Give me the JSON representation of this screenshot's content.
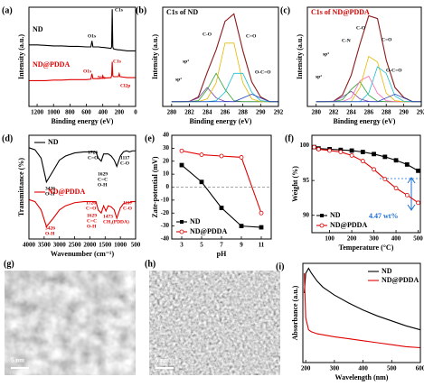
{
  "chart_data": [
    {
      "type": "line",
      "label": "(a)",
      "xlabel": "Binding energy (eV)",
      "ylabel": "Intensity (a.u.)",
      "xlim": [
        1300,
        0
      ],
      "xticks": [
        1200,
        1000,
        800,
        600,
        400,
        200,
        0
      ],
      "ylim": [
        0,
        100
      ],
      "legend": "inline",
      "x": [
        1300,
        1200,
        1100,
        1000,
        900,
        800,
        700,
        600,
        545,
        532,
        520,
        450,
        410,
        400,
        390,
        300,
        292,
        285,
        278,
        270,
        210,
        200,
        190,
        100,
        0
      ],
      "series": [
        {
          "name": "ND",
          "color": "#000000",
          "values": [
            62,
            62,
            61.5,
            61,
            61,
            60.5,
            60.5,
            60,
            60,
            66,
            60,
            60,
            59.5,
            59.5,
            59.5,
            58.5,
            60,
            98,
            60,
            58,
            57,
            57,
            57,
            56,
            56
          ]
        },
        {
          "name": "ND@PDDA",
          "color": "#e00000",
          "values": [
            26,
            26,
            26,
            26.5,
            26.5,
            27,
            27,
            27,
            27.5,
            33,
            28,
            28,
            28.5,
            31,
            28.5,
            29,
            31,
            45,
            31,
            30,
            30,
            33,
            30,
            29,
            29
          ]
        }
      ],
      "annotations": [
        "C1s",
        "O1s",
        "C1s",
        "O1s",
        "N1s",
        "Cl2p"
      ]
    },
    {
      "type": "line",
      "label": "(b)",
      "xlabel": "Binding energy (eV)",
      "ylabel": "Intensity (a.u.)",
      "xlim": [
        279,
        292
      ],
      "xticks": [
        280,
        282,
        284,
        286,
        288,
        290,
        292
      ],
      "ylim": [
        0,
        105
      ],
      "x": [
        280,
        281,
        282,
        283,
        284,
        285,
        286,
        287,
        288,
        289,
        290,
        291,
        292
      ],
      "series": [
        {
          "color": "#8b1a1a",
          "values": [
            5,
            5,
            5.3,
            10,
            36,
            60,
            90,
            98,
            59,
            26,
            10,
            5,
            5
          ]
        },
        {
          "color": "#7b3fa0",
          "values": [
            5,
            5,
            5.3,
            9,
            20,
            9,
            5.3,
            5,
            5,
            5,
            5,
            5,
            5
          ]
        },
        {
          "color": "#2ca02c",
          "values": [
            5,
            5,
            5,
            6,
            18,
            35,
            18,
            6,
            5,
            5,
            5,
            5,
            5
          ]
        },
        {
          "color": "#e6b800",
          "values": [
            5,
            5,
            5,
            5,
            8,
            25,
            67,
            67,
            25,
            8,
            5,
            5,
            5
          ]
        },
        {
          "color": "#17becf",
          "values": [
            5,
            5,
            5,
            5,
            5,
            6,
            15,
            35,
            35,
            15,
            6,
            5,
            5
          ]
        },
        {
          "color": "#1f3fbf",
          "values": [
            5,
            5,
            5,
            5,
            5,
            5,
            5,
            5,
            9,
            13,
            9,
            5,
            5
          ]
        }
      ],
      "annotations": [
        "C1s of ND",
        "C-O",
        "C=O",
        "sp³",
        "sp²",
        "O-C=O"
      ]
    },
    {
      "type": "line",
      "label": "(c)",
      "xlabel": "Binding energy (eV)",
      "ylabel": "Intensity (a.u.)",
      "xlim": [
        279,
        292
      ],
      "xticks": [
        280,
        282,
        284,
        286,
        288,
        290,
        292
      ],
      "ylim": [
        0,
        105
      ],
      "x": [
        280,
        281,
        282,
        283,
        284,
        285,
        286,
        287,
        288,
        289,
        290,
        291,
        292
      ],
      "series": [
        {
          "color": "#8b1a1a",
          "values": [
            5,
            5,
            5.5,
            12,
            33,
            66,
            96,
            93,
            49,
            20,
            9.5,
            5,
            5
          ]
        },
        {
          "color": "#7b3fa0",
          "values": [
            5,
            5,
            5.5,
            10,
            16,
            8,
            5.2,
            5,
            5,
            5,
            5,
            5,
            5
          ]
        },
        {
          "color": "#2ca02c",
          "values": [
            5,
            5,
            5,
            7,
            18,
            26,
            12,
            5.5,
            5,
            5,
            5,
            5,
            5
          ]
        },
        {
          "color": "#ff69b4",
          "values": [
            5,
            5,
            5,
            5,
            9,
            27,
            32,
            14,
            6,
            5,
            5,
            5,
            5
          ]
        },
        {
          "color": "#e6b800",
          "values": [
            5,
            5,
            5,
            5,
            5,
            20,
            53,
            47,
            14,
            6,
            5,
            5,
            5
          ]
        },
        {
          "color": "#17becf",
          "values": [
            5,
            5,
            5,
            5,
            5,
            5,
            14,
            42,
            35,
            11,
            5.5,
            5,
            5
          ]
        },
        {
          "color": "#1f3fbf",
          "values": [
            5,
            5,
            5,
            5,
            5,
            5,
            5,
            5,
            9,
            13,
            9,
            5,
            5
          ]
        }
      ],
      "annotations": [
        "C1s of ND@PDDA",
        "C-O",
        "C-N",
        "C=O",
        "sp³",
        "sp²",
        "O-C=O"
      ]
    },
    {
      "type": "line",
      "label": "(d)",
      "xlabel": "Wavenumber (cm⁻¹)",
      "ylabel": "Transmittance (%)",
      "xlim": [
        4000,
        500
      ],
      "xticks": [
        4000,
        3500,
        3000,
        2500,
        2000,
        1500,
        1000,
        500
      ],
      "ylim": [
        0,
        100
      ],
      "legend": "inline",
      "legend_line": true,
      "x": [
        4000,
        3800,
        3600,
        3426,
        3200,
        3000,
        2800,
        2500,
        2200,
        2000,
        1800,
        1726,
        1629,
        1550,
        1473,
        1400,
        1300,
        1200,
        1117,
        1000,
        900,
        800,
        700,
        600,
        500
      ],
      "series": [
        {
          "name": "ND",
          "color": "#000000",
          "values": [
            88,
            86,
            78,
            55,
            66,
            76,
            80,
            83,
            84,
            84,
            84,
            78,
            75,
            82,
            82,
            82,
            80,
            76,
            70,
            80,
            84,
            85,
            84,
            85,
            85
          ]
        },
        {
          "name": "ND@PDDA",
          "color": "#e00000",
          "values": [
            38,
            36,
            28,
            12,
            20,
            28,
            32,
            35,
            36,
            36,
            36,
            28,
            25,
            32,
            27,
            32,
            31,
            28,
            20,
            30,
            34,
            35,
            35,
            36,
            36
          ]
        }
      ],
      "annotations": [
        "3426",
        "O-H",
        "1726",
        "C=O",
        "1629",
        "C=C",
        "O-H",
        "1117",
        "C-O",
        "3426",
        "O-H",
        "1726",
        "C=O",
        "1629",
        "C=C",
        "O-H",
        "1473",
        "CH₃(PDDA)",
        "1117",
        "C-O"
      ]
    },
    {
      "type": "line",
      "label": "(e)",
      "xlabel": "pH",
      "ylabel": "Zate-potential (mV)",
      "xlim": [
        2,
        12
      ],
      "xticks": [
        3,
        5,
        7,
        9,
        11
      ],
      "ylim": [
        -40,
        40
      ],
      "yticks": [
        -40,
        -30,
        -20,
        -10,
        0,
        10,
        20,
        30,
        40
      ],
      "zero_line": true,
      "legend": "lower-left",
      "x": [
        3,
        5,
        7,
        9,
        11
      ],
      "series": [
        {
          "name": "ND",
          "color": "#000000",
          "marker": "square",
          "values": [
            17,
            4,
            -16,
            -30,
            -31
          ]
        },
        {
          "name": "ND@PDDA",
          "color": "#e00000",
          "marker": "circle",
          "values": [
            28,
            25,
            24,
            23,
            -20
          ]
        }
      ]
    },
    {
      "type": "line",
      "label": "(f)",
      "xlabel": "Temperature (°C)",
      "ylabel": "Weight (%)",
      "xlim": [
        20,
        510
      ],
      "xticks": [
        100,
        200,
        300,
        400,
        500
      ],
      "ylim": [
        87.5,
        101.5
      ],
      "yticks": [
        90,
        95,
        100
      ],
      "legend": "lower-left",
      "x": [
        30,
        50,
        100,
        150,
        200,
        250,
        300,
        350,
        400,
        450,
        500
      ],
      "series": [
        {
          "name": "ND",
          "color": "#000000",
          "marker": "square",
          "values": [
            99.8,
            99.6,
            99.5,
            99.4,
            99.3,
            99.1,
            98.8,
            98.4,
            97.9,
            97.3,
            96.4
          ]
        },
        {
          "name": "ND@PDDA",
          "color": "#e00000",
          "marker": "circle",
          "values": [
            99.8,
            99.5,
            99.3,
            99.1,
            98.6,
            97.8,
            96.6,
            95.2,
            93.9,
            92.9,
            91.8
          ]
        }
      ],
      "annotations": [
        "4.47 wt%"
      ]
    },
    {
      "type": "line",
      "label": "(i)",
      "xlabel": "Wavelength (nm)",
      "ylabel": "Absorbance (a.u.)",
      "xlim": [
        190,
        600
      ],
      "xticks": [
        200,
        300,
        400,
        500,
        600
      ],
      "ylim": [
        0,
        1
      ],
      "legend": "upper-right",
      "x": [
        195,
        200,
        210,
        220,
        240,
        260,
        300,
        350,
        400,
        450,
        500,
        550,
        600
      ],
      "series": [
        {
          "name": "ND",
          "color": "#000000",
          "values": [
            0.7,
            0.9,
            0.95,
            0.9,
            0.82,
            0.76,
            0.68,
            0.6,
            0.53,
            0.47,
            0.42,
            0.37,
            0.33
          ]
        },
        {
          "name": "ND@PDDA",
          "color": "#e00000",
          "values": [
            0.9,
            0.45,
            0.33,
            0.31,
            0.29,
            0.28,
            0.26,
            0.24,
            0.22,
            0.2,
            0.18,
            0.16,
            0.15
          ]
        }
      ]
    }
  ],
  "images": [
    {
      "label": "(g)",
      "scale": "5 nm"
    },
    {
      "label": "(h)",
      "scale": "5 nm"
    }
  ]
}
